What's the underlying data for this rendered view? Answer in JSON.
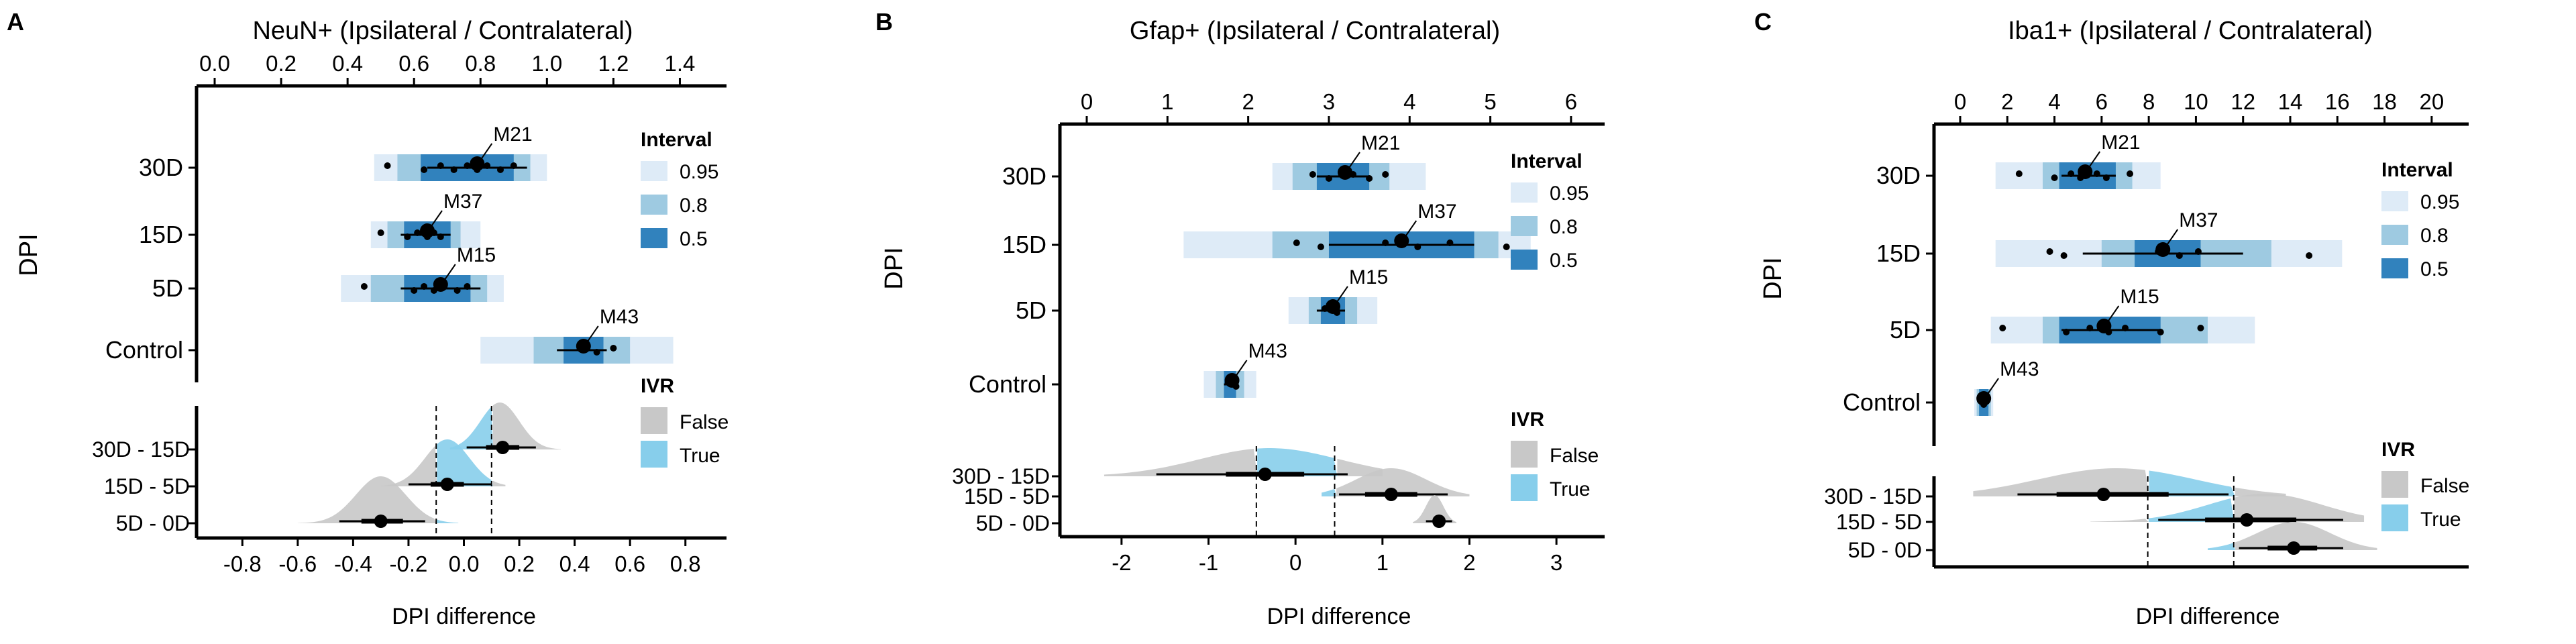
{
  "panels": [
    {
      "letter": "A",
      "title": "NeuN+ (Ipsilateral / Contralateral)",
      "y_axis_label": "DPI",
      "x_axis_label": "DPI difference",
      "legend_interval": {
        "title": "Interval",
        "items": [
          {
            "label": "0.95",
            "color": "#deebf7"
          },
          {
            "label": "0.8",
            "color": "#9ecae1"
          },
          {
            "label": "0.5",
            "color": "#3182bd"
          }
        ]
      },
      "legend_ivr": {
        "title": "IVR",
        "items": [
          {
            "label": "False",
            "color": "#c8c8c8"
          },
          {
            "label": "True",
            "color": "#87ceeb"
          }
        ]
      },
      "upper_chart": {
        "type": "interval",
        "x_ticks": [
          "0.0",
          "0.2",
          "0.4",
          "0.6",
          "0.8",
          "1.0",
          "1.2",
          "1.4"
        ],
        "x_tick_values": [
          0.0,
          0.2,
          0.4,
          0.6,
          0.8,
          1.0,
          1.2,
          1.4
        ],
        "xlim": [
          0.0,
          1.5
        ],
        "categories": [
          "30D",
          "15D",
          "5D",
          "Control"
        ],
        "groups": [
          {
            "category": "30D",
            "ci95": [
              0.48,
              1.0
            ],
            "ci80": [
              0.55,
              0.95
            ],
            "ci50": [
              0.62,
              0.9
            ],
            "median": 0.79,
            "whisker": [
              0.64,
              0.94
            ],
            "points": [
              0.52,
              0.63,
              0.68,
              0.72,
              0.76,
              0.79,
              0.82,
              0.86,
              0.9
            ],
            "annotation": "M21"
          },
          {
            "category": "15D",
            "ci95": [
              0.47,
              0.8
            ],
            "ci80": [
              0.52,
              0.74
            ],
            "ci50": [
              0.57,
              0.71
            ],
            "median": 0.64,
            "whisker": [
              0.56,
              0.71
            ],
            "points": [
              0.5,
              0.58,
              0.61,
              0.64,
              0.66,
              0.68
            ],
            "annotation": "M37"
          },
          {
            "category": "5D",
            "ci95": [
              0.38,
              0.87
            ],
            "ci80": [
              0.47,
              0.82
            ],
            "ci50": [
              0.57,
              0.77
            ],
            "median": 0.68,
            "whisker": [
              0.56,
              0.8
            ],
            "points": [
              0.45,
              0.6,
              0.63,
              0.66,
              0.69,
              0.73,
              0.76
            ],
            "annotation": "M15"
          },
          {
            "category": "Control",
            "ci95": [
              0.8,
              1.38
            ],
            "ci80": [
              0.96,
              1.25
            ],
            "ci50": [
              1.05,
              1.17
            ],
            "median": 1.11,
            "whisker": [
              1.03,
              1.18
            ],
            "points": [
              1.1,
              1.15,
              1.2
            ],
            "annotation": "M43"
          }
        ]
      },
      "lower_chart": {
        "type": "density",
        "x_ticks": [
          "-0.8",
          "-0.6",
          "-0.4",
          "-0.2",
          "0.0",
          "0.2",
          "0.4",
          "0.6",
          "0.8"
        ],
        "x_tick_values": [
          -0.8,
          -0.6,
          -0.4,
          -0.2,
          0.0,
          0.2,
          0.4,
          0.6,
          0.8
        ],
        "xlim": [
          -0.9,
          0.9
        ],
        "ivr_lines": [
          -0.1,
          0.1
        ],
        "categories": [
          "30D - 15D",
          "15D - 5D",
          "5D - 0D"
        ],
        "groups": [
          {
            "category": "30D - 15D",
            "peak": 0.13,
            "sd": 0.07,
            "min": -0.05,
            "max": 0.35,
            "median": 0.14,
            "ci66": [
              0.08,
              0.2
            ],
            "ci95": [
              0.01,
              0.26
            ]
          },
          {
            "category": "15D - 5D",
            "peak": -0.06,
            "sd": 0.08,
            "min": -0.3,
            "max": 0.15,
            "median": -0.06,
            "ci66": [
              -0.12,
              0.0
            ],
            "ci95": [
              -0.2,
              0.1
            ]
          },
          {
            "category": "5D - 0D",
            "peak": -0.3,
            "sd": 0.09,
            "min": -0.6,
            "max": -0.02,
            "median": -0.3,
            "ci66": [
              -0.37,
              -0.22
            ],
            "ci95": [
              -0.45,
              -0.14
            ]
          }
        ]
      }
    },
    {
      "letter": "B",
      "title": "Gfap+ (Ipsilateral / Contralateral)",
      "y_axis_label": "DPI",
      "x_axis_label": "DPI difference",
      "legend_interval": {
        "title": "Interval",
        "items": [
          {
            "label": "0.95",
            "color": "#deebf7"
          },
          {
            "label": "0.8",
            "color": "#9ecae1"
          },
          {
            "label": "0.5",
            "color": "#3182bd"
          }
        ]
      },
      "legend_ivr": {
        "title": "IVR",
        "items": [
          {
            "label": "False",
            "color": "#c8c8c8"
          },
          {
            "label": "True",
            "color": "#87ceeb"
          }
        ]
      },
      "upper_chart": {
        "type": "interval",
        "x_ticks": [
          "0",
          "1",
          "2",
          "3",
          "4",
          "5",
          "6"
        ],
        "x_tick_values": [
          0,
          1,
          2,
          3,
          4,
          5,
          6
        ],
        "xlim": [
          0,
          6.25
        ],
        "categories": [
          "30D",
          "15D",
          "5D",
          "Control"
        ],
        "groups": [
          {
            "category": "30D",
            "ci95": [
              2.3,
              4.2
            ],
            "ci80": [
              2.55,
              3.75
            ],
            "ci50": [
              2.85,
              3.5
            ],
            "median": 3.2,
            "whisker": [
              2.85,
              3.5
            ],
            "points": [
              2.8,
              3.0,
              3.3,
              3.5,
              3.7
            ],
            "annotation": "M21"
          },
          {
            "category": "15D",
            "ci95": [
              1.2,
              5.5
            ],
            "ci80": [
              2.3,
              5.1
            ],
            "ci50": [
              3.0,
              4.8
            ],
            "median": 3.9,
            "whisker": [
              3.0,
              4.8
            ],
            "points": [
              2.6,
              2.9,
              3.7,
              4.1,
              4.5,
              5.2
            ],
            "annotation": "M37"
          },
          {
            "category": "5D",
            "ci95": [
              2.5,
              3.6
            ],
            "ci80": [
              2.75,
              3.35
            ],
            "ci50": [
              2.9,
              3.2
            ],
            "median": 3.05,
            "whisker": [
              2.85,
              3.2
            ],
            "points": [
              2.95,
              3.1
            ],
            "annotation": "M15"
          },
          {
            "category": "Control",
            "ci95": [
              1.45,
              2.1
            ],
            "ci80": [
              1.6,
              1.95
            ],
            "ci50": [
              1.7,
              1.85
            ],
            "median": 1.8,
            "whisker": [
              1.7,
              1.85
            ],
            "points": [
              1.75,
              1.85
            ],
            "annotation": "M43"
          }
        ]
      },
      "lower_chart": {
        "type": "density",
        "x_ticks": [
          "-2",
          "-1",
          "0",
          "1",
          "2",
          "3"
        ],
        "x_tick_values": [
          -2,
          -1,
          0,
          1,
          2,
          3
        ],
        "xlim": [
          -2.4,
          3.4
        ],
        "ivr_lines": [
          -0.45,
          0.45
        ],
        "categories": [
          "30D - 15D",
          "15D - 5D",
          "5D - 0D"
        ],
        "groups": [
          {
            "category": "30D - 15D",
            "peak": -0.3,
            "sd": 0.8,
            "min": -2.2,
            "max": 1.0,
            "median": -0.35,
            "ci66": [
              -0.8,
              0.1
            ],
            "ci95": [
              -1.6,
              0.6
            ]
          },
          {
            "category": "15D - 5D",
            "peak": 1.1,
            "sd": 0.4,
            "min": 0.3,
            "max": 2.0,
            "median": 1.1,
            "ci66": [
              0.8,
              1.4
            ],
            "ci95": [
              0.5,
              1.75
            ]
          },
          {
            "category": "5D - 0D",
            "peak": 1.6,
            "sd": 0.1,
            "min": 1.35,
            "max": 1.85,
            "median": 1.65,
            "ci66": [
              1.58,
              1.72
            ],
            "ci95": [
              1.5,
              1.8
            ]
          }
        ]
      }
    },
    {
      "letter": "C",
      "title": "Iba1+ (Ipsilateral / Contralateral)",
      "y_axis_label": "DPI",
      "x_axis_label": "DPI difference",
      "legend_interval": {
        "title": "Interval",
        "items": [
          {
            "label": "0.95",
            "color": "#deebf7"
          },
          {
            "label": "0.8",
            "color": "#9ecae1"
          },
          {
            "label": "0.5",
            "color": "#3182bd"
          }
        ]
      },
      "legend_ivr": {
        "title": "IVR",
        "items": [
          {
            "label": "False",
            "color": "#c8c8c8"
          },
          {
            "label": "True",
            "color": "#87ceeb"
          }
        ]
      },
      "upper_chart": {
        "type": "interval",
        "x_ticks": [
          "0",
          "2",
          "4",
          "6",
          "8",
          "10",
          "12",
          "14",
          "16",
          "18",
          "20"
        ],
        "x_tick_values": [
          0,
          2,
          4,
          6,
          8,
          10,
          12,
          14,
          16,
          18,
          20
        ],
        "xlim": [
          0,
          21
        ],
        "categories": [
          "30D",
          "15D",
          "5D",
          "Control"
        ],
        "groups": [
          {
            "category": "30D",
            "ci95": [
              1.5,
              8.5
            ],
            "ci80": [
              3.5,
              7.3
            ],
            "ci50": [
              4.2,
              6.6
            ],
            "median": 5.3,
            "whisker": [
              4.3,
              6.6
            ],
            "points": [
              2.5,
              4.0,
              4.7,
              5.1,
              5.8,
              6.2,
              7.2
            ],
            "annotation": "M21"
          },
          {
            "category": "15D",
            "ci95": [
              1.5,
              16.2
            ],
            "ci80": [
              6.0,
              13.2
            ],
            "ci50": [
              7.4,
              10.2
            ],
            "median": 8.6,
            "whisker": [
              5.2,
              12.0
            ],
            "points": [
              3.8,
              4.4,
              8.4,
              9.3,
              10.1,
              14.8
            ],
            "annotation": "M37"
          },
          {
            "category": "5D",
            "ci95": [
              1.3,
              12.5
            ],
            "ci80": [
              3.5,
              10.5
            ],
            "ci50": [
              4.2,
              8.5
            ],
            "median": 6.1,
            "whisker": [
              4.3,
              8.5
            ],
            "points": [
              1.8,
              4.5,
              5.5,
              6.3,
              7.0,
              8.5,
              10.2
            ],
            "annotation": "M15"
          },
          {
            "category": "Control",
            "ci95": [
              0.6,
              1.4
            ],
            "ci80": [
              0.7,
              1.3
            ],
            "ci50": [
              0.8,
              1.2
            ],
            "median": 1.0,
            "whisker": [
              0.8,
              1.2
            ],
            "points": [
              0.85,
              1.0,
              1.15
            ],
            "annotation": "M43"
          }
        ]
      },
      "lower_chart": {
        "type": "density",
        "x_ticks": [],
        "x_tick_values": [],
        "xlim": [
          -8.5,
          10.5
        ],
        "ivr_lines": [
          -1.3,
          2.0
        ],
        "categories": [
          "30D - 15D",
          "15D - 5D",
          "5D - 0D"
        ],
        "groups": [
          {
            "category": "30D - 15D",
            "peak": -2.5,
            "sd": 3.0,
            "min": -8.0,
            "max": 4.0,
            "median": -3.0,
            "ci66": [
              -4.8,
              -0.5
            ],
            "ci95": [
              -6.3,
              1.8
            ]
          },
          {
            "category": "15D - 5D",
            "peak": 3.2,
            "sd": 2.2,
            "min": -3.5,
            "max": 7.0,
            "median": 2.5,
            "ci66": [
              0.9,
              4.4
            ],
            "ci95": [
              -0.9,
              6.2
            ]
          },
          {
            "category": "5D - 0D",
            "peak": 4.3,
            "sd": 1.4,
            "min": 1.0,
            "max": 7.5,
            "median": 4.3,
            "ci66": [
              3.3,
              5.2
            ],
            "ci95": [
              2.2,
              6.2
            ]
          }
        ]
      }
    }
  ]
}
